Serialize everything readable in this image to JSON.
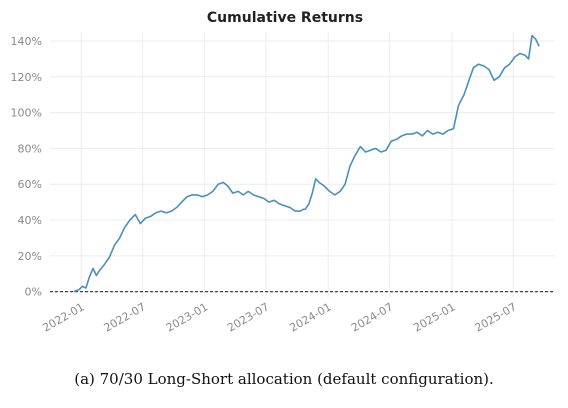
{
  "caption": "(a) 70/30 Long-Short allocation (default configuration).",
  "chart_data": {
    "type": "line",
    "title": "Cumulative Returns",
    "xlabel": "",
    "ylabel": "",
    "y_tick_labels": [
      "0%",
      "20%",
      "40%",
      "60%",
      "80%",
      "100%",
      "120%",
      "140%"
    ],
    "y_ticks": [
      0,
      20,
      40,
      60,
      80,
      100,
      120,
      140
    ],
    "x_tick_labels": [
      "2022-01",
      "2022-07",
      "2023-01",
      "2023-07",
      "2024-01",
      "2024-07",
      "2025-01",
      "2025-07"
    ],
    "xlim": [
      "2021-10",
      "2025-11"
    ],
    "ylim": [
      -3,
      145
    ],
    "grid": true,
    "reference_line": 0,
    "colors": {
      "line": "#4a90b8",
      "zero_line": "#444444",
      "grid": "#ececec"
    },
    "series": [
      {
        "x": [
          "2021-12-10",
          "2021-12-25",
          "2022-01-05",
          "2022-01-15",
          "2022-01-25",
          "2022-02-05",
          "2022-02-15",
          "2022-02-25",
          "2022-03-10",
          "2022-03-25",
          "2022-04-10",
          "2022-04-25",
          "2022-05-10",
          "2022-05-25",
          "2022-06-10",
          "2022-06-25",
          "2022-07-10",
          "2022-07-25",
          "2022-08-10",
          "2022-08-25",
          "2022-09-10",
          "2022-09-25",
          "2022-10-10",
          "2022-10-25",
          "2022-11-10",
          "2022-11-25",
          "2022-12-10",
          "2022-12-25",
          "2023-01-10",
          "2023-01-25",
          "2023-02-10",
          "2023-02-25",
          "2023-03-10",
          "2023-03-25",
          "2023-04-10",
          "2023-04-25",
          "2023-05-10",
          "2023-05-25",
          "2023-06-10",
          "2023-06-25",
          "2023-07-10",
          "2023-07-25",
          "2023-08-10",
          "2023-08-25",
          "2023-09-10",
          "2023-09-25",
          "2023-10-10",
          "2023-10-20",
          "2023-10-25",
          "2023-11-05",
          "2023-11-15",
          "2023-11-25",
          "2023-12-05",
          "2023-12-20",
          "2024-01-05",
          "2024-01-20",
          "2024-02-05",
          "2024-02-20",
          "2024-03-05",
          "2024-03-20",
          "2024-04-05",
          "2024-04-20",
          "2024-05-05",
          "2024-05-20",
          "2024-06-05",
          "2024-06-20",
          "2024-07-05",
          "2024-07-20",
          "2024-08-05",
          "2024-08-20",
          "2024-09-05",
          "2024-09-20",
          "2024-10-05",
          "2024-10-20",
          "2024-11-05",
          "2024-11-20",
          "2024-12-05",
          "2024-12-20",
          "2025-01-05",
          "2025-01-20",
          "2025-02-05",
          "2025-02-20",
          "2025-03-05",
          "2025-03-20",
          "2025-04-05",
          "2025-04-20",
          "2025-05-05",
          "2025-05-20",
          "2025-06-05",
          "2025-06-20",
          "2025-07-05",
          "2025-07-20",
          "2025-08-05",
          "2025-08-15",
          "2025-08-25",
          "2025-09-05",
          "2025-09-15"
        ],
        "values": [
          0,
          1,
          3,
          2,
          8,
          13,
          9,
          12,
          15,
          19,
          26,
          30,
          36,
          40,
          43,
          38,
          41,
          42,
          44,
          45,
          44,
          45,
          47,
          50,
          53,
          54,
          54,
          53,
          54,
          56,
          60,
          61,
          59,
          55,
          56,
          54,
          56,
          54,
          53,
          52,
          50,
          51,
          49,
          48,
          47,
          45,
          45,
          46,
          46,
          49,
          55,
          63,
          61,
          59,
          56,
          54,
          56,
          60,
          70,
          76,
          81,
          78,
          79,
          80,
          78,
          79,
          84,
          85,
          87,
          88,
          88,
          89,
          87,
          90,
          88,
          89,
          88,
          90,
          91,
          104,
          110,
          118,
          125,
          127,
          126,
          124,
          118,
          120,
          125,
          127,
          131,
          133,
          132,
          130,
          143,
          141,
          137
        ]
      }
    ]
  }
}
